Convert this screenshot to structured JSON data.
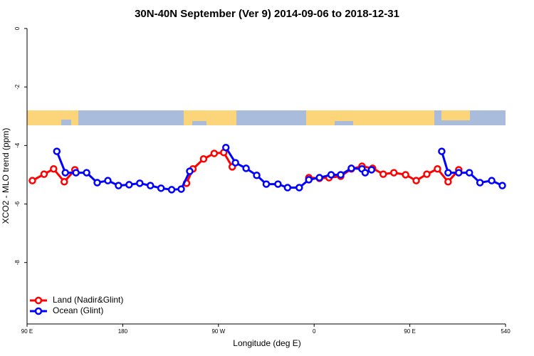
{
  "chart_data": {
    "type": "line",
    "title": "30N-40N September (Ver 9)   2014-09-06 to 2018-12-31",
    "x_label": "Longitude (deg E)",
    "y_label": "XCO2 - MLO trend (ppm)",
    "xlim": [
      90,
      540
    ],
    "ylim": [
      -10.1,
      0
    ],
    "xticks": [
      {
        "value": 90,
        "label": "90 E"
      },
      180,
      {
        "value": 270,
        "label": "90 W"
      },
      {
        "value": 360,
        "label": "0"
      },
      {
        "value": 450,
        "label": "90 E"
      },
      540
    ],
    "yticks": [
      0,
      -2,
      -4,
      -6,
      -8
    ],
    "legend": "bottom-left",
    "series": [
      {
        "name": "Land (Nadir&Glint)",
        "color": "#ff0000",
        "x": [
          95,
          106,
          115,
          125,
          135,
          null,
          240,
          246,
          256,
          266,
          275,
          283,
          null,
          355,
          365,
          374,
          385,
          395,
          405,
          415,
          425,
          435,
          446,
          456,
          466,
          476,
          486,
          496
        ],
        "values": [
          -5.2,
          -4.98,
          -4.8,
          -5.24,
          -4.83,
          null,
          -5.29,
          -4.8,
          -4.46,
          -4.27,
          -4.24,
          -4.73,
          null,
          -5.1,
          -5.12,
          -5.1,
          -5.05,
          -4.8,
          -4.71,
          -4.78,
          -4.98,
          -4.93,
          -5.0,
          -5.2,
          -4.98,
          -4.8,
          -5.24,
          -4.83
        ]
      },
      {
        "name": "Ocean (Glint)",
        "color": "#0000ff",
        "x": [
          118,
          126,
          136,
          146,
          156,
          166,
          176,
          186,
          196,
          206,
          216,
          226,
          235,
          243,
          null,
          277,
          286,
          296,
          306,
          315,
          326,
          335,
          346,
          355,
          365,
          376,
          385,
          395,
          405,
          408,
          414,
          null,
          480,
          486,
          496,
          506,
          516,
          527,
          537
        ],
        "values": [
          -4.2,
          -4.93,
          -4.93,
          -4.93,
          -5.27,
          -5.2,
          -5.37,
          -5.34,
          -5.29,
          -5.37,
          -5.46,
          -5.51,
          -5.49,
          -4.88,
          null,
          -4.07,
          -4.59,
          -4.78,
          -5.02,
          -5.32,
          -5.32,
          -5.44,
          -5.44,
          -5.17,
          -5.1,
          -5.0,
          -5.0,
          -4.78,
          -4.8,
          -4.93,
          -4.83,
          null,
          -4.2,
          -4.93,
          -4.93,
          -4.93,
          -5.27,
          -5.2,
          -5.37
        ]
      }
    ]
  }
}
